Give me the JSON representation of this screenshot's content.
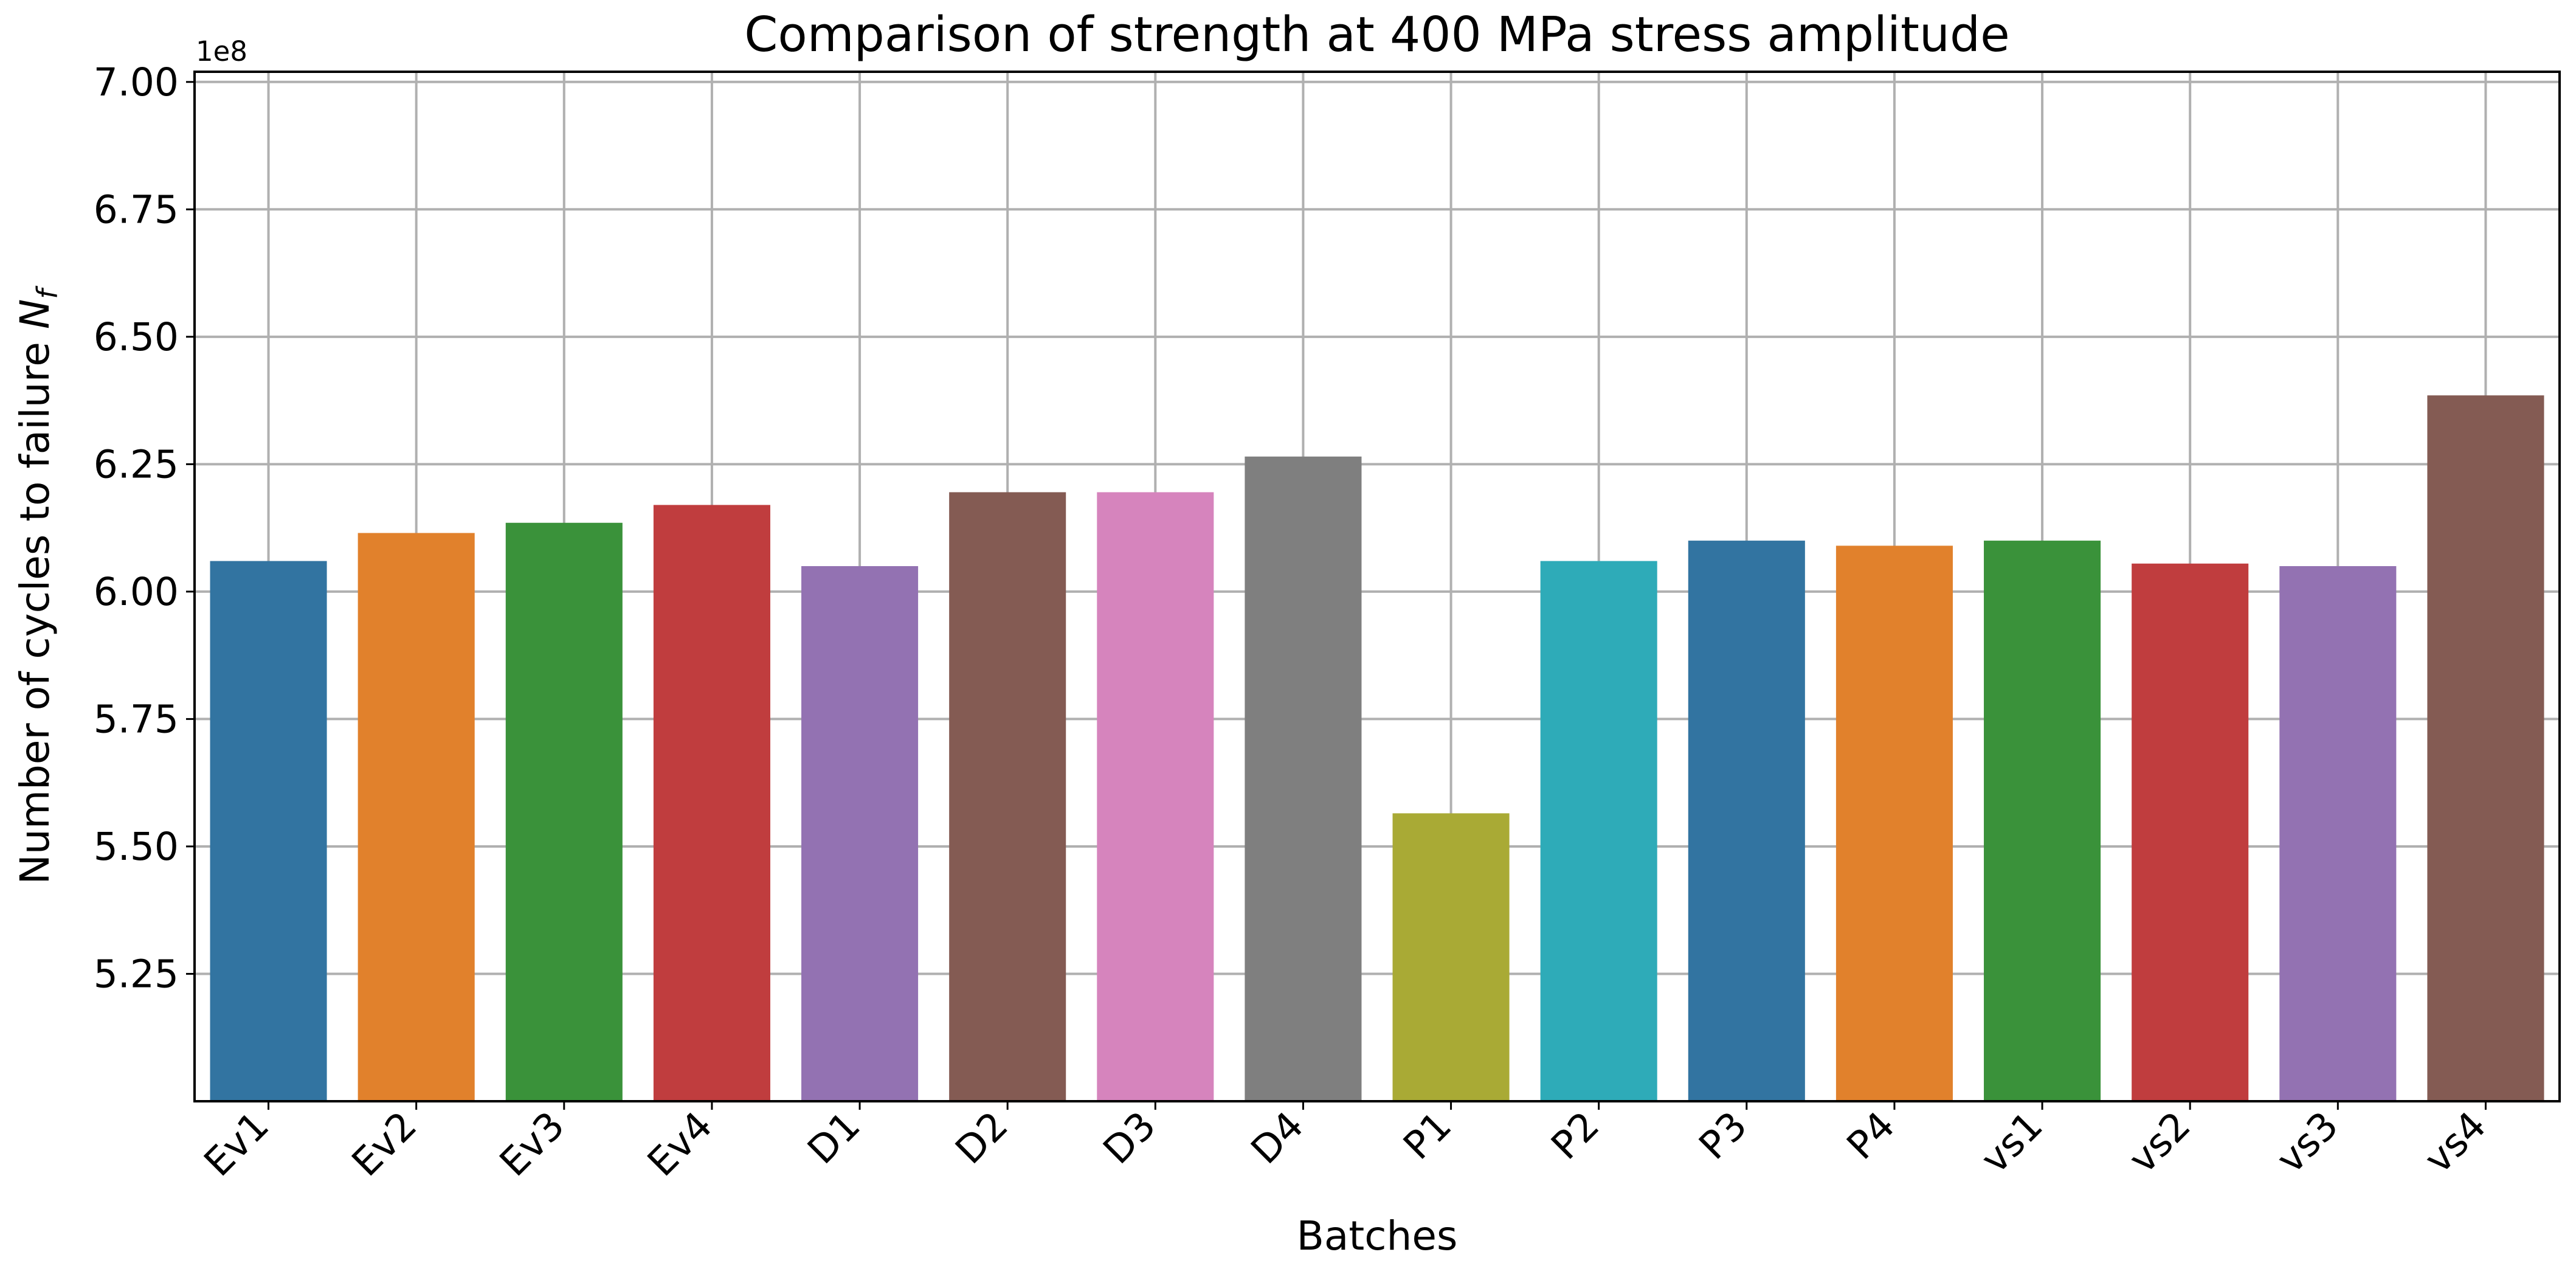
{
  "chart_data": {
    "type": "bar",
    "title": "Comparison of strength at 400 MPa stress amplitude",
    "xlabel": "Batches",
    "ylabel_main": "Number of cycles to failure ",
    "ylabel_symbol": "N",
    "ylabel_subscript": "f",
    "y_offset_text": "1e8",
    "ylim": [
      5.0,
      7.02
    ],
    "yticks": [
      5.25,
      5.5,
      5.75,
      6.0,
      6.25,
      6.5,
      6.75,
      7.0
    ],
    "ytick_labels": [
      "5.25",
      "5.50",
      "5.75",
      "6.00",
      "6.25",
      "6.50",
      "6.75",
      "7.00"
    ],
    "grid": true,
    "categories": [
      "Ev1",
      "Ev2",
      "Ev3",
      "Ev4",
      "D1",
      "D2",
      "D3",
      "D4",
      "P1",
      "P2",
      "P3",
      "P4",
      "vs1",
      "vs2",
      "vs3",
      "vs4"
    ],
    "values": [
      6.06,
      6.115,
      6.135,
      6.17,
      6.05,
      6.195,
      6.195,
      6.265,
      5.565,
      6.06,
      6.1,
      6.09,
      6.1,
      6.055,
      6.05,
      6.385
    ],
    "colors": [
      "#3274a1",
      "#e1812c",
      "#3a923a",
      "#c03d3e",
      "#9372b2",
      "#845b53",
      "#d684bd",
      "#7f7f7f",
      "#a9aa35",
      "#2eabb8",
      "#3274a1",
      "#e1812c",
      "#3a923a",
      "#c03d3e",
      "#9372b2",
      "#845b53"
    ]
  }
}
